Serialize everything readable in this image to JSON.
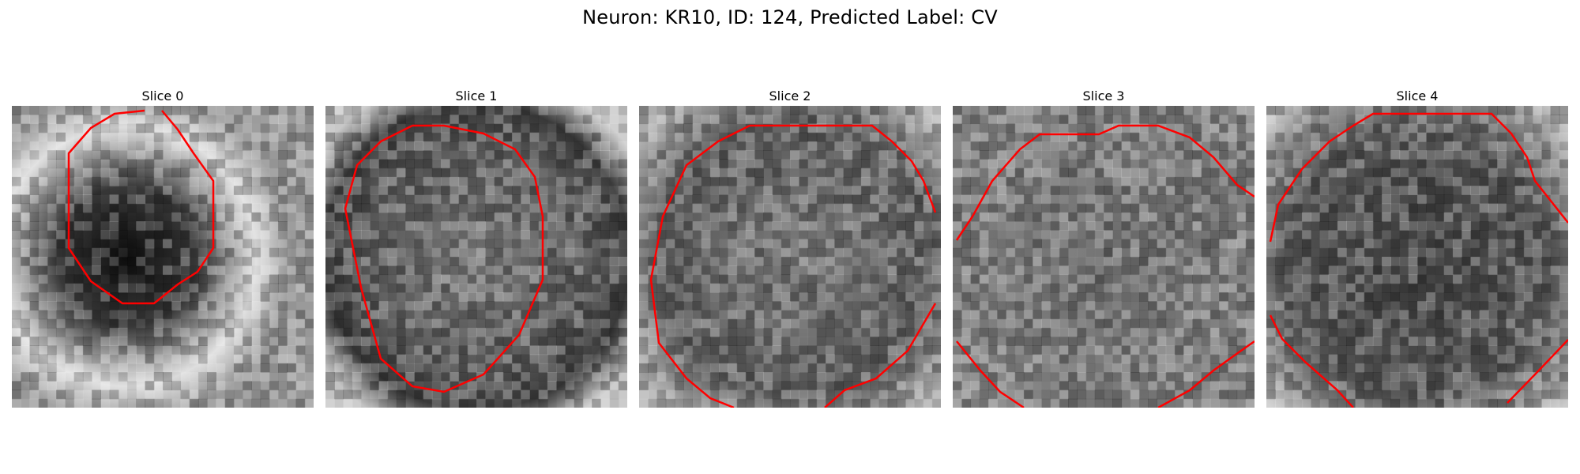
{
  "figure": {
    "title": "Neuron: KR10, ID: 124, Predicted Label: CV"
  },
  "panels": [
    {
      "title": "Slice 0"
    },
    {
      "title": "Slice 1"
    },
    {
      "title": "Slice 2"
    },
    {
      "title": "Slice 3"
    },
    {
      "title": "Slice 4"
    }
  ],
  "colors": {
    "contour": "#ff0000",
    "colormap": "grayscale"
  }
}
